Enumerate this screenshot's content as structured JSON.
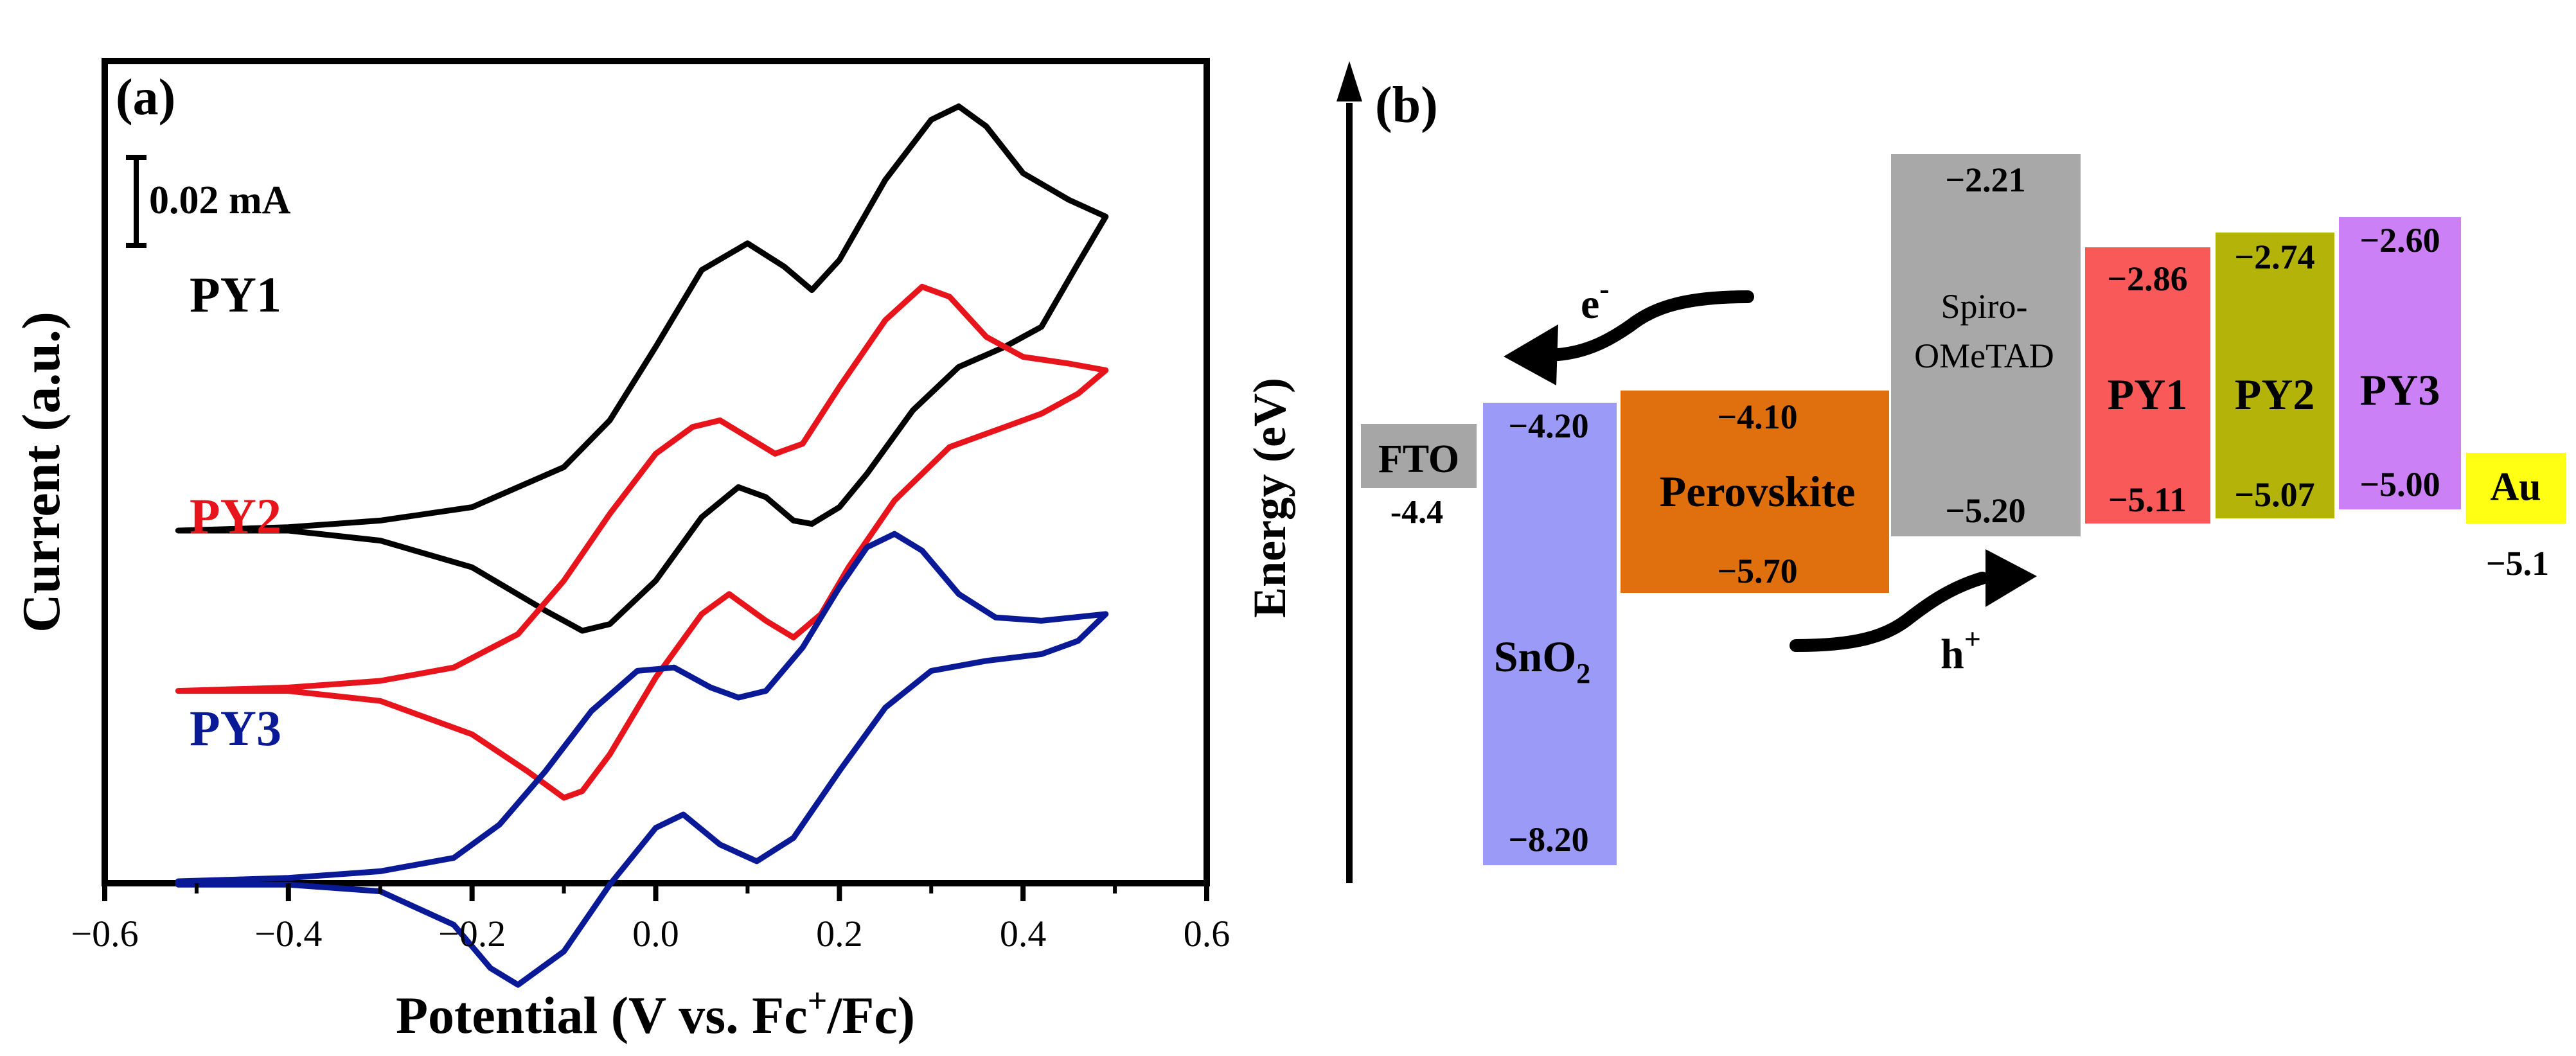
{
  "chart_data": [
    {
      "type": "line",
      "panel_label": "(a)",
      "xlabel_prefix": "Potential (V vs. Fc",
      "xlabel_sup": "+",
      "xlabel_suffix": "/Fc)",
      "ylabel": "Current (a.u.)",
      "xlim": [
        -0.6,
        0.6
      ],
      "x_ticks": [
        -0.6,
        -0.4,
        -0.2,
        0.0,
        0.2,
        0.4,
        0.6
      ],
      "x_tick_labels": [
        "−0.6",
        "−0.4",
        "−0.2",
        "0.0",
        "0.2",
        "0.4",
        "0.6"
      ],
      "scale_bar": {
        "label": "0.02 mA",
        "value_mA": 0.02
      },
      "series": [
        {
          "name": "PY1",
          "color": "#000000",
          "forward": [
            [
              -0.52,
              0.045
            ],
            [
              -0.4,
              0.046
            ],
            [
              -0.3,
              0.048
            ],
            [
              -0.2,
              0.052
            ],
            [
              -0.1,
              0.064
            ],
            [
              -0.05,
              0.078
            ],
            [
              0.0,
              0.1
            ],
            [
              0.05,
              0.123
            ],
            [
              0.1,
              0.131
            ],
            [
              0.14,
              0.124
            ],
            [
              0.17,
              0.117
            ],
            [
              0.2,
              0.126
            ],
            [
              0.25,
              0.15
            ],
            [
              0.3,
              0.168
            ],
            [
              0.33,
              0.172
            ],
            [
              0.36,
              0.166
            ],
            [
              0.4,
              0.152
            ],
            [
              0.45,
              0.144
            ],
            [
              0.49,
              0.139
            ]
          ],
          "reverse": [
            [
              0.49,
              0.139
            ],
            [
              0.46,
              0.125
            ],
            [
              0.42,
              0.106
            ],
            [
              0.38,
              0.1
            ],
            [
              0.33,
              0.094
            ],
            [
              0.28,
              0.081
            ],
            [
              0.23,
              0.062
            ],
            [
              0.2,
              0.052
            ],
            [
              0.17,
              0.047
            ],
            [
              0.15,
              0.048
            ],
            [
              0.12,
              0.055
            ],
            [
              0.09,
              0.058
            ],
            [
              0.05,
              0.049
            ],
            [
              0.0,
              0.03
            ],
            [
              -0.05,
              0.017
            ],
            [
              -0.08,
              0.015
            ],
            [
              -0.12,
              0.021
            ],
            [
              -0.2,
              0.034
            ],
            [
              -0.3,
              0.042
            ],
            [
              -0.4,
              0.045
            ],
            [
              -0.52,
              0.045
            ]
          ]
        },
        {
          "name": "PY2",
          "color": "#e8141c",
          "forward": [
            [
              -0.52,
              -0.003
            ],
            [
              -0.4,
              -0.002
            ],
            [
              -0.3,
              0.0
            ],
            [
              -0.22,
              0.004
            ],
            [
              -0.15,
              0.014
            ],
            [
              -0.1,
              0.03
            ],
            [
              -0.05,
              0.05
            ],
            [
              0.0,
              0.068
            ],
            [
              0.04,
              0.076
            ],
            [
              0.07,
              0.078
            ],
            [
              0.1,
              0.073
            ],
            [
              0.13,
              0.068
            ],
            [
              0.16,
              0.071
            ],
            [
              0.2,
              0.088
            ],
            [
              0.25,
              0.108
            ],
            [
              0.29,
              0.118
            ],
            [
              0.32,
              0.115
            ],
            [
              0.36,
              0.103
            ],
            [
              0.4,
              0.097
            ],
            [
              0.45,
              0.095
            ],
            [
              0.49,
              0.093
            ]
          ],
          "reverse": [
            [
              0.49,
              0.093
            ],
            [
              0.46,
              0.086
            ],
            [
              0.42,
              0.08
            ],
            [
              0.38,
              0.076
            ],
            [
              0.32,
              0.07
            ],
            [
              0.26,
              0.054
            ],
            [
              0.21,
              0.034
            ],
            [
              0.18,
              0.02
            ],
            [
              0.15,
              0.013
            ],
            [
              0.12,
              0.018
            ],
            [
              0.08,
              0.026
            ],
            [
              0.05,
              0.02
            ],
            [
              0.0,
              0.001
            ],
            [
              -0.05,
              -0.022
            ],
            [
              -0.08,
              -0.033
            ],
            [
              -0.1,
              -0.035
            ],
            [
              -0.14,
              -0.027
            ],
            [
              -0.2,
              -0.016
            ],
            [
              -0.3,
              -0.006
            ],
            [
              -0.4,
              -0.003
            ],
            [
              -0.52,
              -0.003
            ]
          ]
        },
        {
          "name": "PY3",
          "color": "#0a1a96",
          "forward": [
            [
              -0.52,
              -0.06
            ],
            [
              -0.4,
              -0.059
            ],
            [
              -0.3,
              -0.057
            ],
            [
              -0.22,
              -0.053
            ],
            [
              -0.17,
              -0.043
            ],
            [
              -0.12,
              -0.027
            ],
            [
              -0.07,
              -0.009
            ],
            [
              -0.02,
              0.003
            ],
            [
              0.02,
              0.004
            ],
            [
              0.06,
              -0.002
            ],
            [
              0.09,
              -0.005
            ],
            [
              0.12,
              -0.003
            ],
            [
              0.16,
              0.01
            ],
            [
              0.2,
              0.028
            ],
            [
              0.23,
              0.04
            ],
            [
              0.26,
              0.044
            ],
            [
              0.29,
              0.039
            ],
            [
              0.33,
              0.026
            ],
            [
              0.37,
              0.019
            ],
            [
              0.42,
              0.018
            ],
            [
              0.49,
              0.02
            ]
          ],
          "reverse": [
            [
              0.49,
              0.02
            ],
            [
              0.46,
              0.012
            ],
            [
              0.42,
              0.008
            ],
            [
              0.36,
              0.006
            ],
            [
              0.3,
              0.003
            ],
            [
              0.25,
              -0.008
            ],
            [
              0.2,
              -0.027
            ],
            [
              0.15,
              -0.047
            ],
            [
              0.11,
              -0.054
            ],
            [
              0.07,
              -0.049
            ],
            [
              0.03,
              -0.04
            ],
            [
              0.0,
              -0.044
            ],
            [
              -0.05,
              -0.061
            ],
            [
              -0.1,
              -0.081
            ],
            [
              -0.15,
              -0.091
            ],
            [
              -0.18,
              -0.086
            ],
            [
              -0.22,
              -0.073
            ],
            [
              -0.3,
              -0.063
            ],
            [
              -0.4,
              -0.061
            ],
            [
              -0.52,
              -0.061
            ]
          ]
        }
      ]
    },
    {
      "type": "diagram",
      "panel_label": "(b)",
      "ylabel": "Energy (eV)",
      "blocks": [
        {
          "id": "fto",
          "lines": [
            "FTO"
          ],
          "top": "-4.4",
          "color": "#a6a6a6"
        },
        {
          "id": "sno2",
          "label_main": "SnO",
          "label_sub": "2",
          "top": "−4.20",
          "bottom": "−8.20",
          "color": "#9b9bf7"
        },
        {
          "id": "perovskite",
          "lines": [
            "Perovskite"
          ],
          "top": "−4.10",
          "bottom": "−5.70",
          "color": "#e0700d"
        },
        {
          "id": "spiro",
          "lines": [
            "Spiro-",
            "OMeTAD"
          ],
          "top": "−2.21",
          "bottom": "−5.20",
          "color": "#a8a8a8"
        },
        {
          "id": "py1",
          "lines": [
            "PY1"
          ],
          "top": "−2.86",
          "bottom": "−5.11",
          "color": "#fa5959"
        },
        {
          "id": "py2",
          "lines": [
            "PY2"
          ],
          "top": "−2.74",
          "bottom": "−5.07",
          "color": "#b3b30a"
        },
        {
          "id": "py3",
          "lines": [
            "PY3"
          ],
          "top": "−2.60",
          "bottom": "−5.00",
          "color": "#cc80f5"
        },
        {
          "id": "au",
          "lines": [
            "Au"
          ],
          "bottom": "−5.1",
          "color": "#ffff14"
        }
      ],
      "arrows": {
        "electron": {
          "label": "e",
          "sup": "-"
        },
        "hole": {
          "label": "h",
          "sup": "+"
        }
      }
    }
  ]
}
